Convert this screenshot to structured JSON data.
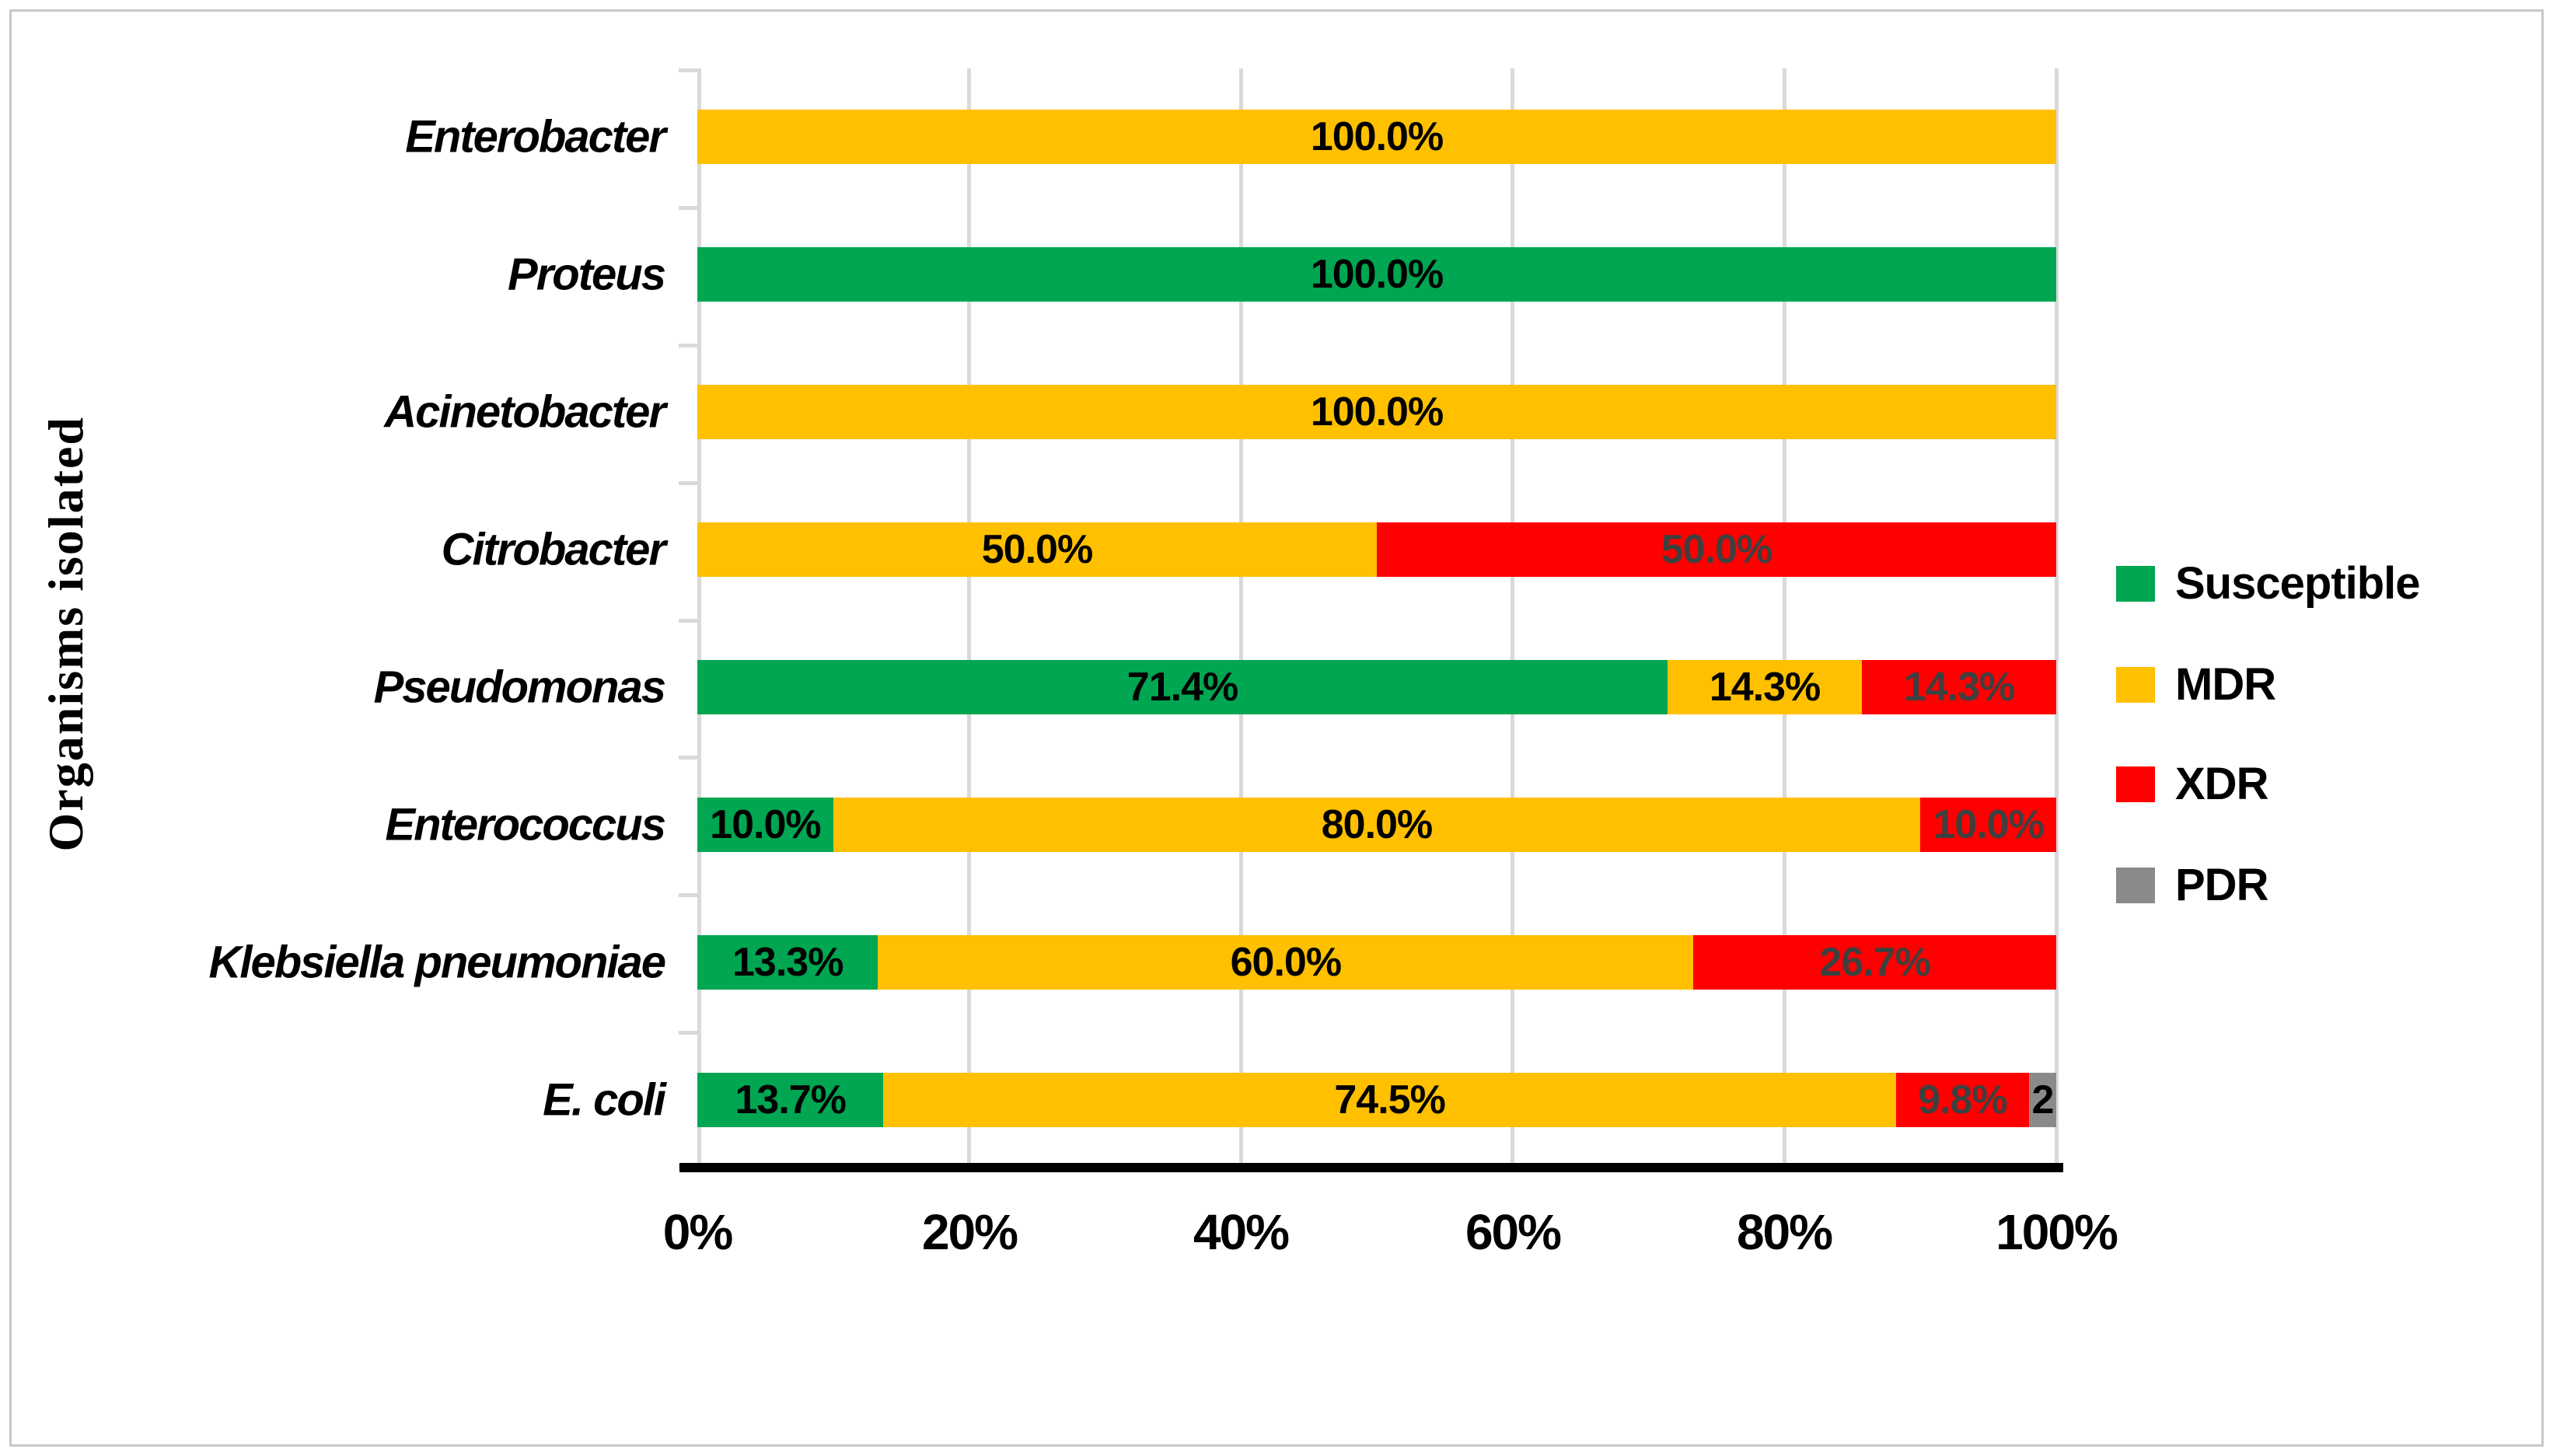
{
  "figure": {
    "background_color": "#FFFFFF",
    "border_color": "#C9C9C9"
  },
  "y_axis_title": "Organisms isolated",
  "x_axis_tick_labels": [
    "0%",
    "20%",
    "40%",
    "60%",
    "80%",
    "100%"
  ],
  "colors": {
    "gridline": "#D9D9D9",
    "axis_line": "#000000",
    "label_on_red": "#3F3F3F",
    "label_default": "#000000"
  },
  "legend": {
    "position": "right",
    "entries": [
      "Susceptible",
      "MDR",
      "XDR",
      "PDR"
    ]
  },
  "chart_data": {
    "type": "bar",
    "orientation": "horizontal-stacked",
    "title": "",
    "xlabel": "",
    "ylabel": "Organisms isolated",
    "xlim": [
      0,
      100
    ],
    "grid": true,
    "legend_position": "right",
    "categories_top_to_bottom": [
      "Enterobacter",
      "Proteus",
      "Acinetobacter",
      "Citrobacter",
      "Pseudomonas",
      "Enterococcus",
      "Klebsiella pneumoniae",
      "E. coli"
    ],
    "series": [
      {
        "name": "Susceptible",
        "color": "#00A651",
        "label_color": "#000000",
        "values": [
          0,
          100.0,
          0,
          0,
          71.4,
          10.0,
          13.3,
          13.7
        ]
      },
      {
        "name": "MDR",
        "color": "#FFC000",
        "label_color": "#000000",
        "values": [
          100.0,
          0,
          100.0,
          50.0,
          14.3,
          80.0,
          60.0,
          74.5
        ]
      },
      {
        "name": "XDR",
        "color": "#FF0000",
        "label_color": "#3F3F3F",
        "values": [
          0,
          0,
          0,
          50.0,
          14.3,
          10.0,
          26.7,
          9.8
        ]
      },
      {
        "name": "PDR",
        "color": "#8A8A8A",
        "label_color": "#000000",
        "values": [
          0,
          0,
          0,
          0,
          0,
          0,
          0,
          2.0
        ]
      }
    ],
    "data_labels": [
      {
        "MDR": "100.0%"
      },
      {
        "Susceptible": "100.0%"
      },
      {
        "MDR": "100.0%"
      },
      {
        "MDR": "50.0%",
        "XDR": "50.0%"
      },
      {
        "Susceptible": "71.4%",
        "MDR": "14.3%",
        "XDR": "14.3%"
      },
      {
        "Susceptible": "10.0%",
        "MDR": "80.0%",
        "XDR": "10.0%"
      },
      {
        "Susceptible": "13.3%",
        "MDR": "60.0%",
        "XDR": "26.7%"
      },
      {
        "Susceptible": "13.7%",
        "MDR": "74.5%",
        "XDR": "9.8%",
        "PDR": "2"
      }
    ]
  }
}
